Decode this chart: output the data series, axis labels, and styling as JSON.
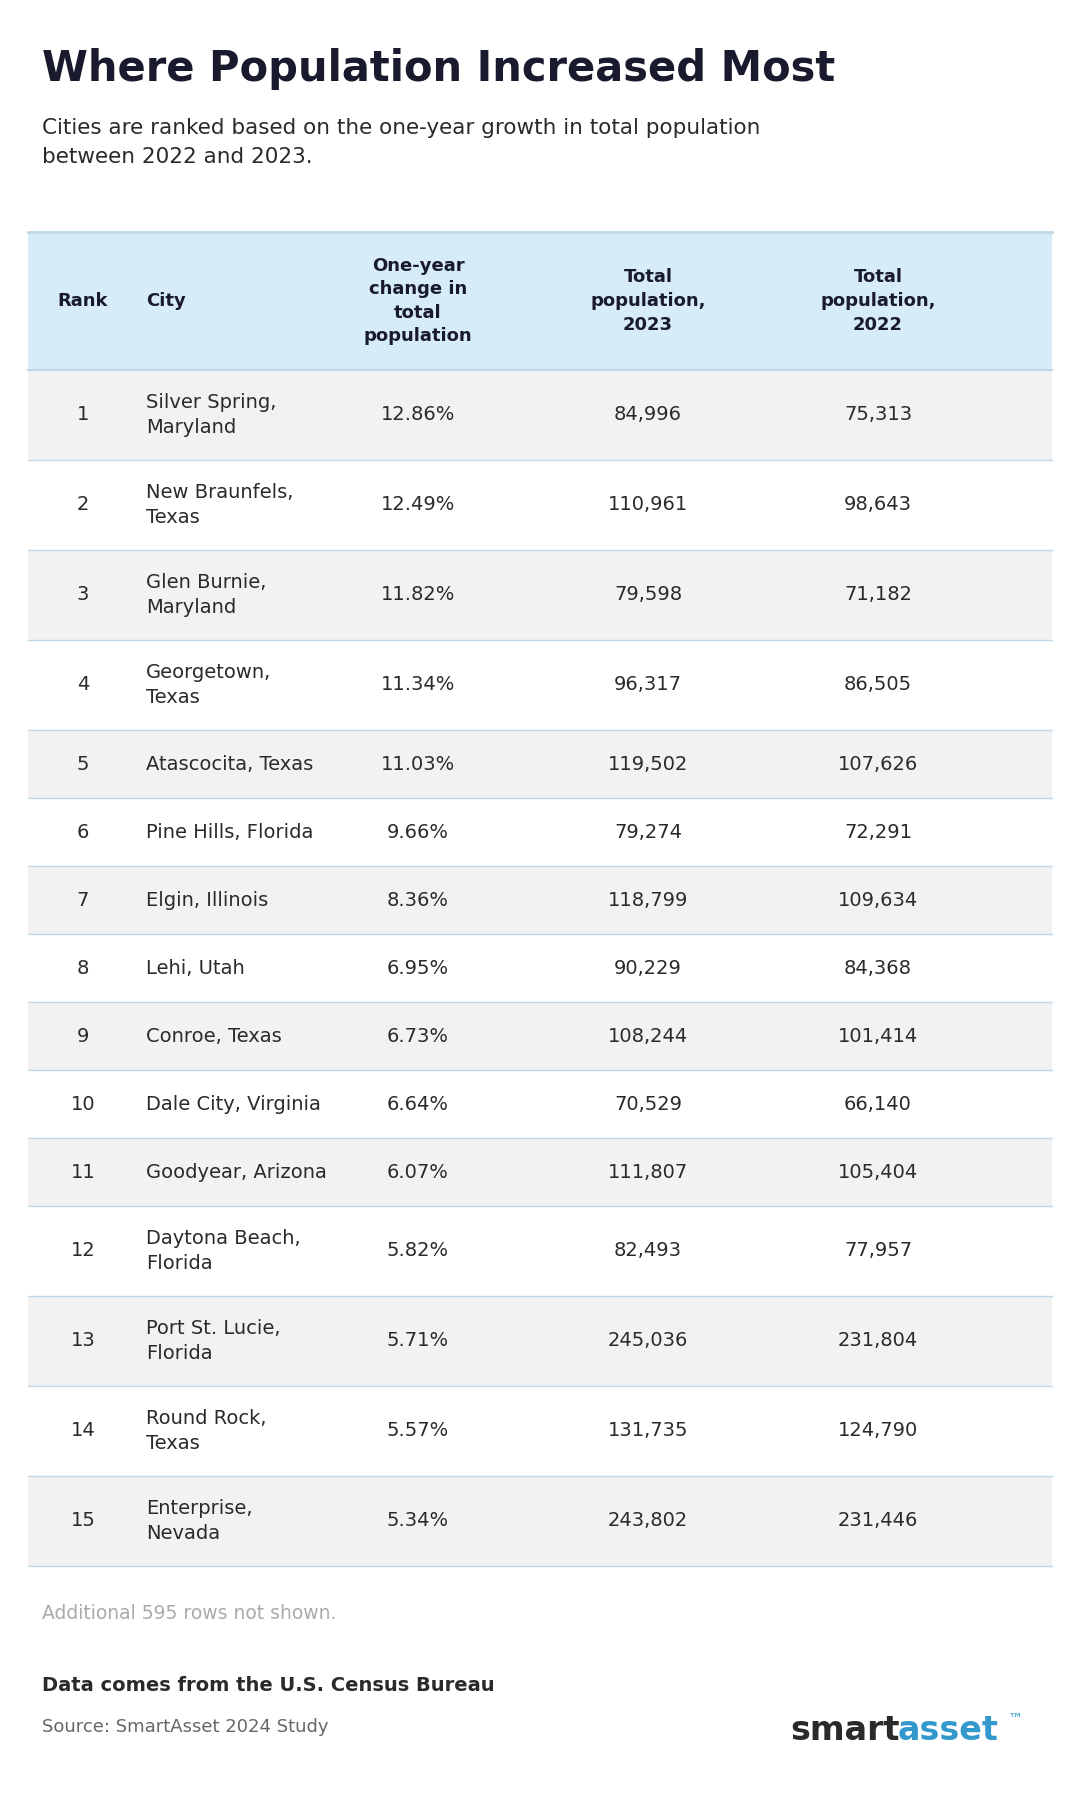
{
  "title": "Where Population Increased Most",
  "subtitle": "Cities are ranked based on the one-year growth in total population\nbetween 2022 and 2023.",
  "col_headers": [
    "Rank",
    "City",
    "One-year\nchange in\ntotal\npopulation",
    "Total\npopulation,\n2023",
    "Total\npopulation,\n2022"
  ],
  "rows": [
    [
      1,
      "Silver Spring,\nMaryland",
      "12.86%",
      "84,996",
      "75,313"
    ],
    [
      2,
      "New Braunfels,\nTexas",
      "12.49%",
      "110,961",
      "98,643"
    ],
    [
      3,
      "Glen Burnie,\nMaryland",
      "11.82%",
      "79,598",
      "71,182"
    ],
    [
      4,
      "Georgetown,\nTexas",
      "11.34%",
      "96,317",
      "86,505"
    ],
    [
      5,
      "Atascocita, Texas",
      "11.03%",
      "119,502",
      "107,626"
    ],
    [
      6,
      "Pine Hills, Florida",
      "9.66%",
      "79,274",
      "72,291"
    ],
    [
      7,
      "Elgin, Illinois",
      "8.36%",
      "118,799",
      "109,634"
    ],
    [
      8,
      "Lehi, Utah",
      "6.95%",
      "90,229",
      "84,368"
    ],
    [
      9,
      "Conroe, Texas",
      "6.73%",
      "108,244",
      "101,414"
    ],
    [
      10,
      "Dale City, Virginia",
      "6.64%",
      "70,529",
      "66,140"
    ],
    [
      11,
      "Goodyear, Arizona",
      "6.07%",
      "111,807",
      "105,404"
    ],
    [
      12,
      "Daytona Beach,\nFlorida",
      "5.82%",
      "82,493",
      "77,957"
    ],
    [
      13,
      "Port St. Lucie,\nFlorida",
      "5.71%",
      "245,036",
      "231,804"
    ],
    [
      14,
      "Round Rock,\nTexas",
      "5.57%",
      "131,735",
      "124,790"
    ],
    [
      15,
      "Enterprise,\nNevada",
      "5.34%",
      "243,802",
      "231,446"
    ]
  ],
  "footer_note": "Additional 595 rows not shown.",
  "data_source": "Data comes from the U.S. Census Bureau",
  "source_line": "Source: SmartAsset 2024 Study",
  "header_bg": "#d6ecf9",
  "row_bg_odd": "#f2f2f2",
  "row_bg_even": "#ffffff",
  "header_text_color": "#1a1a2e",
  "body_text_color": "#2a2a2a",
  "title_color": "#1a1a2e",
  "subtitle_color": "#2a2a2a",
  "footer_color": "#aaaaaa",
  "source_color": "#666666",
  "border_color": "#c0d8e8",
  "smartasset_smart_color": "#2a2a2a",
  "smartasset_asset_color": "#3399cc",
  "fig_width": 10.8,
  "fig_height": 18.02,
  "dpi": 100
}
